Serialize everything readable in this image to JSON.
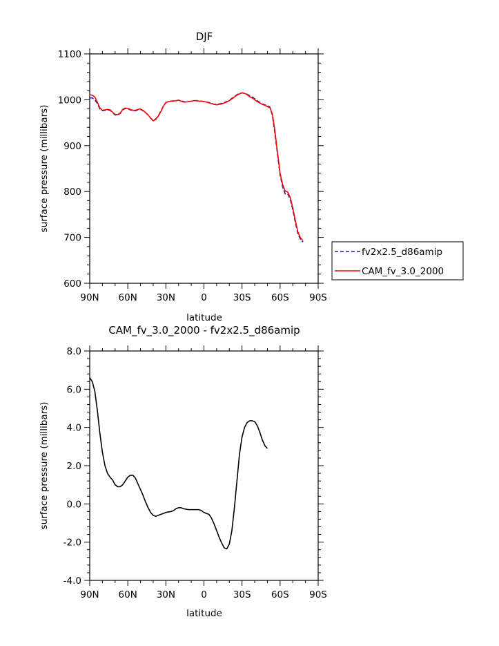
{
  "chart_data": [
    {
      "type": "line",
      "title": "DJF",
      "xlabel": "latitude",
      "ylabel": "surface pressure (millibars)",
      "xlim": [
        90,
        -90
      ],
      "ylim": [
        600,
        1100
      ],
      "x_ticks": [
        90,
        60,
        30,
        0,
        -30,
        -60,
        -90
      ],
      "x_tick_labels": [
        "90N",
        "60N",
        "30N",
        "0",
        "30S",
        "60S",
        "90S"
      ],
      "y_ticks": [
        600,
        700,
        800,
        900,
        1000,
        1100
      ],
      "y_tick_labels": [
        "600",
        "700",
        "800",
        "900",
        "1000",
        "1100"
      ],
      "legend_position": "right-outside-bottom",
      "series": [
        {
          "name": "fv2x2.5_d86amip",
          "color": "#1a1ab4",
          "dash": true,
          "points": [
            [
              90,
              1004
            ],
            [
              88,
              1004
            ],
            [
              86,
              1000
            ],
            [
              84,
              992
            ],
            [
              82,
              980
            ],
            [
              80,
              976
            ],
            [
              78,
              977
            ],
            [
              76,
              978
            ],
            [
              74,
              977
            ],
            [
              72,
              972
            ],
            [
              70,
              967
            ],
            [
              68,
              967
            ],
            [
              66,
              970
            ],
            [
              64,
              978
            ],
            [
              62,
              981
            ],
            [
              60,
              980
            ],
            [
              58,
              978
            ],
            [
              56,
              976
            ],
            [
              54,
              976
            ],
            [
              52,
              978
            ],
            [
              50,
              979
            ],
            [
              48,
              976
            ],
            [
              46,
              972
            ],
            [
              44,
              967
            ],
            [
              42,
              960
            ],
            [
              40,
              955
            ],
            [
              38,
              958
            ],
            [
              36,
              965
            ],
            [
              34,
              975
            ],
            [
              32,
              986
            ],
            [
              30,
              994
            ],
            [
              28,
              996
            ],
            [
              26,
              997
            ],
            [
              24,
              998
            ],
            [
              22,
              998
            ],
            [
              20,
              999
            ],
            [
              18,
              998
            ],
            [
              16,
              996
            ],
            [
              14,
              995
            ],
            [
              12,
              996
            ],
            [
              10,
              997
            ],
            [
              8,
              998
            ],
            [
              6,
              998
            ],
            [
              4,
              998
            ],
            [
              2,
              997
            ],
            [
              0,
              996
            ],
            [
              -2,
              995
            ],
            [
              -4,
              994
            ],
            [
              -6,
              992
            ],
            [
              -8,
              990
            ],
            [
              -10,
              990
            ],
            [
              -12,
              991
            ],
            [
              -14,
              992
            ],
            [
              -16,
              994
            ],
            [
              -18,
              996
            ],
            [
              -20,
              999
            ],
            [
              -22,
              1003
            ],
            [
              -24,
              1007
            ],
            [
              -26,
              1011
            ],
            [
              -28,
              1014
            ],
            [
              -30,
              1015
            ],
            [
              -32,
              1014
            ],
            [
              -34,
              1012
            ],
            [
              -36,
              1009
            ],
            [
              -38,
              1006
            ],
            [
              -40,
              1002
            ],
            [
              -42,
              998
            ],
            [
              -44,
              994
            ],
            [
              -46,
              991
            ],
            [
              -48,
              989
            ],
            [
              -50,
              987
            ],
            [
              -52,
              984
            ],
            [
              -54,
              965
            ],
            [
              -56,
              925
            ],
            [
              -58,
              880
            ],
            [
              -60,
              836
            ],
            [
              -62,
              810
            ],
            [
              -64,
              795
            ],
            [
              -66,
              795
            ],
            [
              -68,
              783
            ],
            [
              -70,
              760
            ],
            [
              -72,
              733
            ],
            [
              -74,
              708
            ],
            [
              -76,
              696
            ],
            [
              -78,
              690
            ]
          ]
        },
        {
          "name": "CAM_fv_3.0_2000",
          "color": "#ff0000",
          "dash": false,
          "points": [
            [
              90,
              1011
            ],
            [
              88,
              1010
            ],
            [
              86,
              1006
            ],
            [
              84,
              995
            ],
            [
              82,
              982
            ],
            [
              80,
              977
            ],
            [
              78,
              978
            ],
            [
              76,
              979
            ],
            [
              74,
              978
            ],
            [
              72,
              973
            ],
            [
              70,
              968
            ],
            [
              68,
              968
            ],
            [
              66,
              971
            ],
            [
              64,
              979
            ],
            [
              62,
              982
            ],
            [
              60,
              981
            ],
            [
              58,
              979
            ],
            [
              56,
              977
            ],
            [
              54,
              977
            ],
            [
              52,
              979
            ],
            [
              50,
              980
            ],
            [
              48,
              977
            ],
            [
              46,
              972
            ],
            [
              44,
              967
            ],
            [
              42,
              960
            ],
            [
              40,
              954
            ],
            [
              38,
              957
            ],
            [
              36,
              964
            ],
            [
              34,
              974
            ],
            [
              32,
              986
            ],
            [
              30,
              994
            ],
            [
              28,
              996
            ],
            [
              26,
              997
            ],
            [
              24,
              997
            ],
            [
              22,
              998
            ],
            [
              20,
              999
            ],
            [
              18,
              997
            ],
            [
              16,
              995
            ],
            [
              14,
              995
            ],
            [
              12,
              996
            ],
            [
              10,
              997
            ],
            [
              8,
              998
            ],
            [
              6,
              998
            ],
            [
              4,
              997
            ],
            [
              2,
              997
            ],
            [
              0,
              996
            ],
            [
              -2,
              995
            ],
            [
              -4,
              993
            ],
            [
              -6,
              992
            ],
            [
              -8,
              990
            ],
            [
              -10,
              989
            ],
            [
              -12,
              990
            ],
            [
              -14,
              991
            ],
            [
              -16,
              993
            ],
            [
              -18,
              995
            ],
            [
              -20,
              998
            ],
            [
              -22,
              1002
            ],
            [
              -24,
              1006
            ],
            [
              -26,
              1010
            ],
            [
              -28,
              1013
            ],
            [
              -30,
              1015
            ],
            [
              -32,
              1014
            ],
            [
              -34,
              1011
            ],
            [
              -36,
              1007
            ],
            [
              -38,
              1004
            ],
            [
              -40,
              1000
            ],
            [
              -42,
              996
            ],
            [
              -44,
              993
            ],
            [
              -46,
              990
            ],
            [
              -48,
              988
            ],
            [
              -50,
              985
            ],
            [
              -52,
              983
            ],
            [
              -54,
              968
            ],
            [
              -56,
              930
            ],
            [
              -58,
              884
            ],
            [
              -60,
              840
            ],
            [
              -62,
              815
            ],
            [
              -64,
              801
            ],
            [
              -66,
              799
            ],
            [
              -68,
              787
            ],
            [
              -70,
              764
            ],
            [
              -72,
              737
            ],
            [
              -74,
              712
            ],
            [
              -76,
              699
            ],
            [
              -78,
              693
            ]
          ]
        }
      ]
    },
    {
      "type": "line",
      "title": "CAM_fv_3.0_2000 - fv2x2.5_d86amip",
      "xlabel": "latitude",
      "ylabel": "surface pressure (millibars)",
      "xlim": [
        90,
        -90
      ],
      "ylim": [
        -4,
        8
      ],
      "x_ticks": [
        90,
        60,
        30,
        0,
        -30,
        -60,
        -90
      ],
      "x_tick_labels": [
        "90N",
        "60N",
        "30N",
        "0",
        "30S",
        "60S",
        "90S"
      ],
      "y_ticks": [
        -4,
        -2,
        0,
        2,
        4,
        6,
        8
      ],
      "y_tick_labels": [
        "-4.0",
        "-2.0",
        "0.0",
        "2.0",
        "4.0",
        "6.0",
        "8.0"
      ],
      "series": [
        {
          "color": "#000000",
          "dash": false,
          "points": [
            [
              90,
              6.6
            ],
            [
              88,
              6.4
            ],
            [
              86,
              5.9
            ],
            [
              84,
              4.9
            ],
            [
              82,
              3.7
            ],
            [
              80,
              2.7
            ],
            [
              78,
              2.0
            ],
            [
              76,
              1.6
            ],
            [
              74,
              1.4
            ],
            [
              72,
              1.25
            ],
            [
              70,
              1.0
            ],
            [
              68,
              0.9
            ],
            [
              66,
              0.9
            ],
            [
              64,
              1.0
            ],
            [
              62,
              1.2
            ],
            [
              60,
              1.4
            ],
            [
              58,
              1.5
            ],
            [
              56,
              1.5
            ],
            [
              54,
              1.35
            ],
            [
              52,
              1.05
            ],
            [
              50,
              0.75
            ],
            [
              48,
              0.45
            ],
            [
              46,
              0.1
            ],
            [
              44,
              -0.2
            ],
            [
              42,
              -0.45
            ],
            [
              40,
              -0.6
            ],
            [
              38,
              -0.65
            ],
            [
              36,
              -0.6
            ],
            [
              34,
              -0.55
            ],
            [
              32,
              -0.5
            ],
            [
              30,
              -0.45
            ],
            [
              28,
              -0.42
            ],
            [
              26,
              -0.4
            ],
            [
              24,
              -0.35
            ],
            [
              22,
              -0.25
            ],
            [
              20,
              -0.2
            ],
            [
              18,
              -0.2
            ],
            [
              16,
              -0.25
            ],
            [
              14,
              -0.28
            ],
            [
              12,
              -0.3
            ],
            [
              10,
              -0.3
            ],
            [
              8,
              -0.3
            ],
            [
              6,
              -0.3
            ],
            [
              4,
              -0.3
            ],
            [
              2,
              -0.35
            ],
            [
              0,
              -0.45
            ],
            [
              -2,
              -0.5
            ],
            [
              -4,
              -0.55
            ],
            [
              -6,
              -0.75
            ],
            [
              -8,
              -1.05
            ],
            [
              -10,
              -1.4
            ],
            [
              -12,
              -1.75
            ],
            [
              -14,
              -2.05
            ],
            [
              -16,
              -2.3
            ],
            [
              -18,
              -2.35
            ],
            [
              -20,
              -2.1
            ],
            [
              -22,
              -1.4
            ],
            [
              -24,
              -0.2
            ],
            [
              -26,
              1.2
            ],
            [
              -28,
              2.6
            ],
            [
              -30,
              3.5
            ],
            [
              -32,
              4.0
            ],
            [
              -34,
              4.25
            ],
            [
              -36,
              4.35
            ],
            [
              -38,
              4.35
            ],
            [
              -40,
              4.3
            ],
            [
              -42,
              4.1
            ],
            [
              -44,
              3.75
            ],
            [
              -46,
              3.35
            ],
            [
              -48,
              3.05
            ],
            [
              -50,
              2.9
            ]
          ]
        }
      ]
    }
  ]
}
